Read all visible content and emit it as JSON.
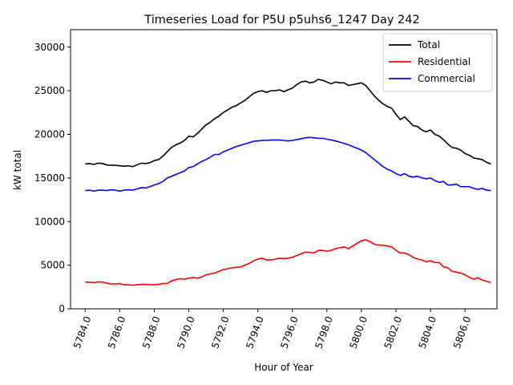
{
  "chart_data": {
    "type": "line",
    "title": "Timeseries Load for P5U p5uhs6_1247  Day 242",
    "xlabel": "Hour of Year",
    "ylabel": "kW total",
    "xlim": [
      5783.15,
      5807.85
    ],
    "ylim": [
      0,
      32000
    ],
    "xticks": [
      5784,
      5786,
      5788,
      5790,
      5792,
      5794,
      5796,
      5798,
      5800,
      5802,
      5804,
      5806
    ],
    "xtick_labels": [
      "5784.0",
      "5786.0",
      "5788.0",
      "5790.0",
      "5792.0",
      "5794.0",
      "5796.0",
      "5798.0",
      "5800.0",
      "5802.0",
      "5804.0",
      "5806.0"
    ],
    "yticks": [
      0,
      5000,
      10000,
      15000,
      20000,
      25000,
      30000
    ],
    "ytick_labels": [
      "0",
      "5000",
      "10000",
      "15000",
      "20000",
      "25000",
      "30000"
    ],
    "legend_position": "top-right",
    "x_start": 5784,
    "x_step": 0.25,
    "series": [
      {
        "name": "Total",
        "color": "#000000",
        "values": [
          16600,
          16650,
          16550,
          16700,
          16650,
          16500,
          16450,
          16450,
          16400,
          16350,
          16400,
          16300,
          16500,
          16700,
          16650,
          16750,
          17000,
          17100,
          17500,
          18000,
          18500,
          18800,
          19000,
          19300,
          19800,
          19700,
          20100,
          20600,
          21100,
          21400,
          21800,
          22100,
          22500,
          22800,
          23100,
          23300,
          23600,
          23900,
          24300,
          24700,
          24900,
          25000,
          24800,
          25000,
          25000,
          25100,
          24900,
          25100,
          25300,
          25700,
          26000,
          26100,
          25900,
          26000,
          26300,
          26200,
          26000,
          25800,
          26000,
          25900,
          25900,
          25600,
          25700,
          25800,
          25900,
          25600,
          25000,
          24400,
          23900,
          23500,
          23200,
          23000,
          22300,
          21700,
          22000,
          21500,
          21000,
          20900,
          20500,
          20300,
          20500,
          20000,
          19800,
          19400,
          18900,
          18500,
          18400,
          18200,
          17800,
          17600,
          17300,
          17200,
          17100,
          16800,
          16600
        ]
      },
      {
        "name": "Residential",
        "color": "#ff0000",
        "values": [
          3050,
          3050,
          3000,
          3100,
          3050,
          2950,
          2850,
          2850,
          2900,
          2750,
          2750,
          2700,
          2750,
          2800,
          2800,
          2750,
          2750,
          2800,
          2900,
          2900,
          3200,
          3350,
          3450,
          3400,
          3500,
          3600,
          3500,
          3650,
          3900,
          4000,
          4100,
          4300,
          4500,
          4600,
          4700,
          4750,
          4800,
          5000,
          5200,
          5500,
          5700,
          5800,
          5600,
          5600,
          5700,
          5800,
          5750,
          5800,
          5900,
          6100,
          6300,
          6500,
          6450,
          6400,
          6700,
          6700,
          6600,
          6700,
          6900,
          7000,
          7100,
          6900,
          7200,
          7500,
          7800,
          7900,
          7700,
          7400,
          7300,
          7300,
          7200,
          7100,
          6700,
          6400,
          6400,
          6200,
          5900,
          5700,
          5600,
          5400,
          5500,
          5300,
          5300,
          4800,
          4700,
          4300,
          4200,
          4100,
          3900,
          3600,
          3400,
          3550,
          3300,
          3150,
          3000
        ]
      },
      {
        "name": "Commercial",
        "color": "#0000ff",
        "values": [
          13550,
          13600,
          13500,
          13600,
          13600,
          13550,
          13650,
          13600,
          13500,
          13600,
          13650,
          13600,
          13750,
          13900,
          13850,
          14000,
          14200,
          14350,
          14600,
          15000,
          15200,
          15400,
          15600,
          15800,
          16200,
          16300,
          16600,
          16900,
          17100,
          17400,
          17700,
          17700,
          18000,
          18200,
          18400,
          18600,
          18750,
          18900,
          19050,
          19200,
          19250,
          19300,
          19300,
          19350,
          19350,
          19350,
          19300,
          19250,
          19300,
          19400,
          19500,
          19600,
          19650,
          19600,
          19550,
          19550,
          19450,
          19350,
          19250,
          19100,
          18950,
          18800,
          18600,
          18400,
          18200,
          17900,
          17500,
          17100,
          16700,
          16300,
          16000,
          15800,
          15500,
          15300,
          15500,
          15200,
          15100,
          15200,
          15000,
          14900,
          15000,
          14700,
          14500,
          14600,
          14200,
          14200,
          14300,
          14000,
          14000,
          14000,
          13800,
          13700,
          13800,
          13600,
          13550
        ]
      }
    ]
  }
}
